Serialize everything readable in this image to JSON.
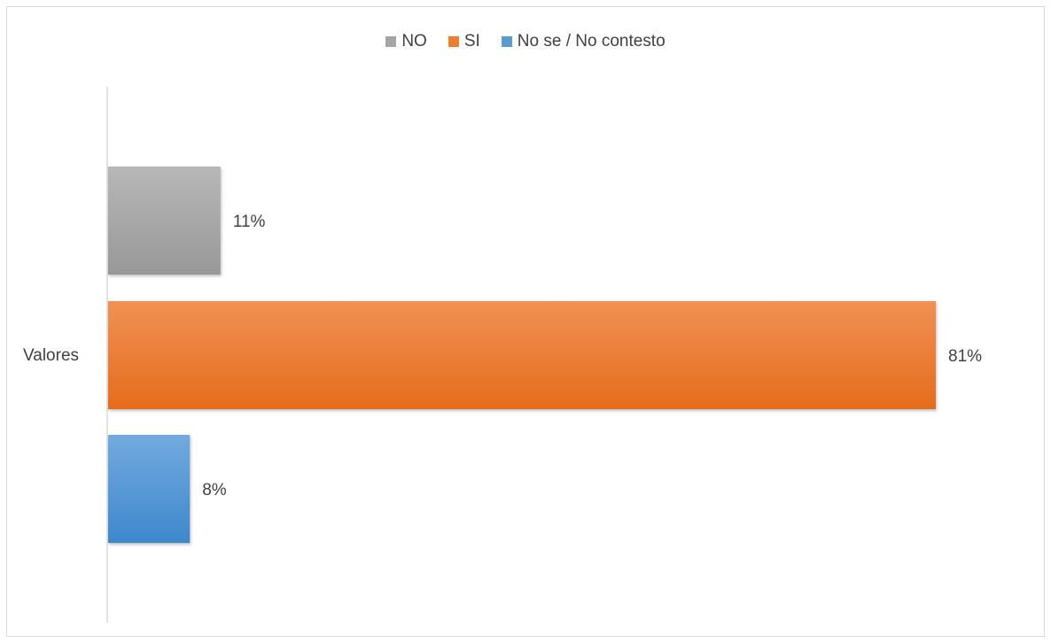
{
  "chart_data": {
    "type": "bar",
    "orientation": "horizontal",
    "categories": [
      "Valores"
    ],
    "series": [
      {
        "name": "NO",
        "values": [
          11
        ],
        "label": "11%",
        "color": "#a5a5a5"
      },
      {
        "name": "SI",
        "values": [
          81
        ],
        "label": "81%",
        "color": "#ed7d31"
      },
      {
        "name": "No se / No contesto",
        "values": [
          8
        ],
        "label": "8%",
        "color": "#5b9bd5"
      }
    ],
    "xlim": [
      0,
      100
    ],
    "title": "",
    "xlabel": "",
    "ylabel": "",
    "grid": false,
    "legend_position": "top"
  }
}
